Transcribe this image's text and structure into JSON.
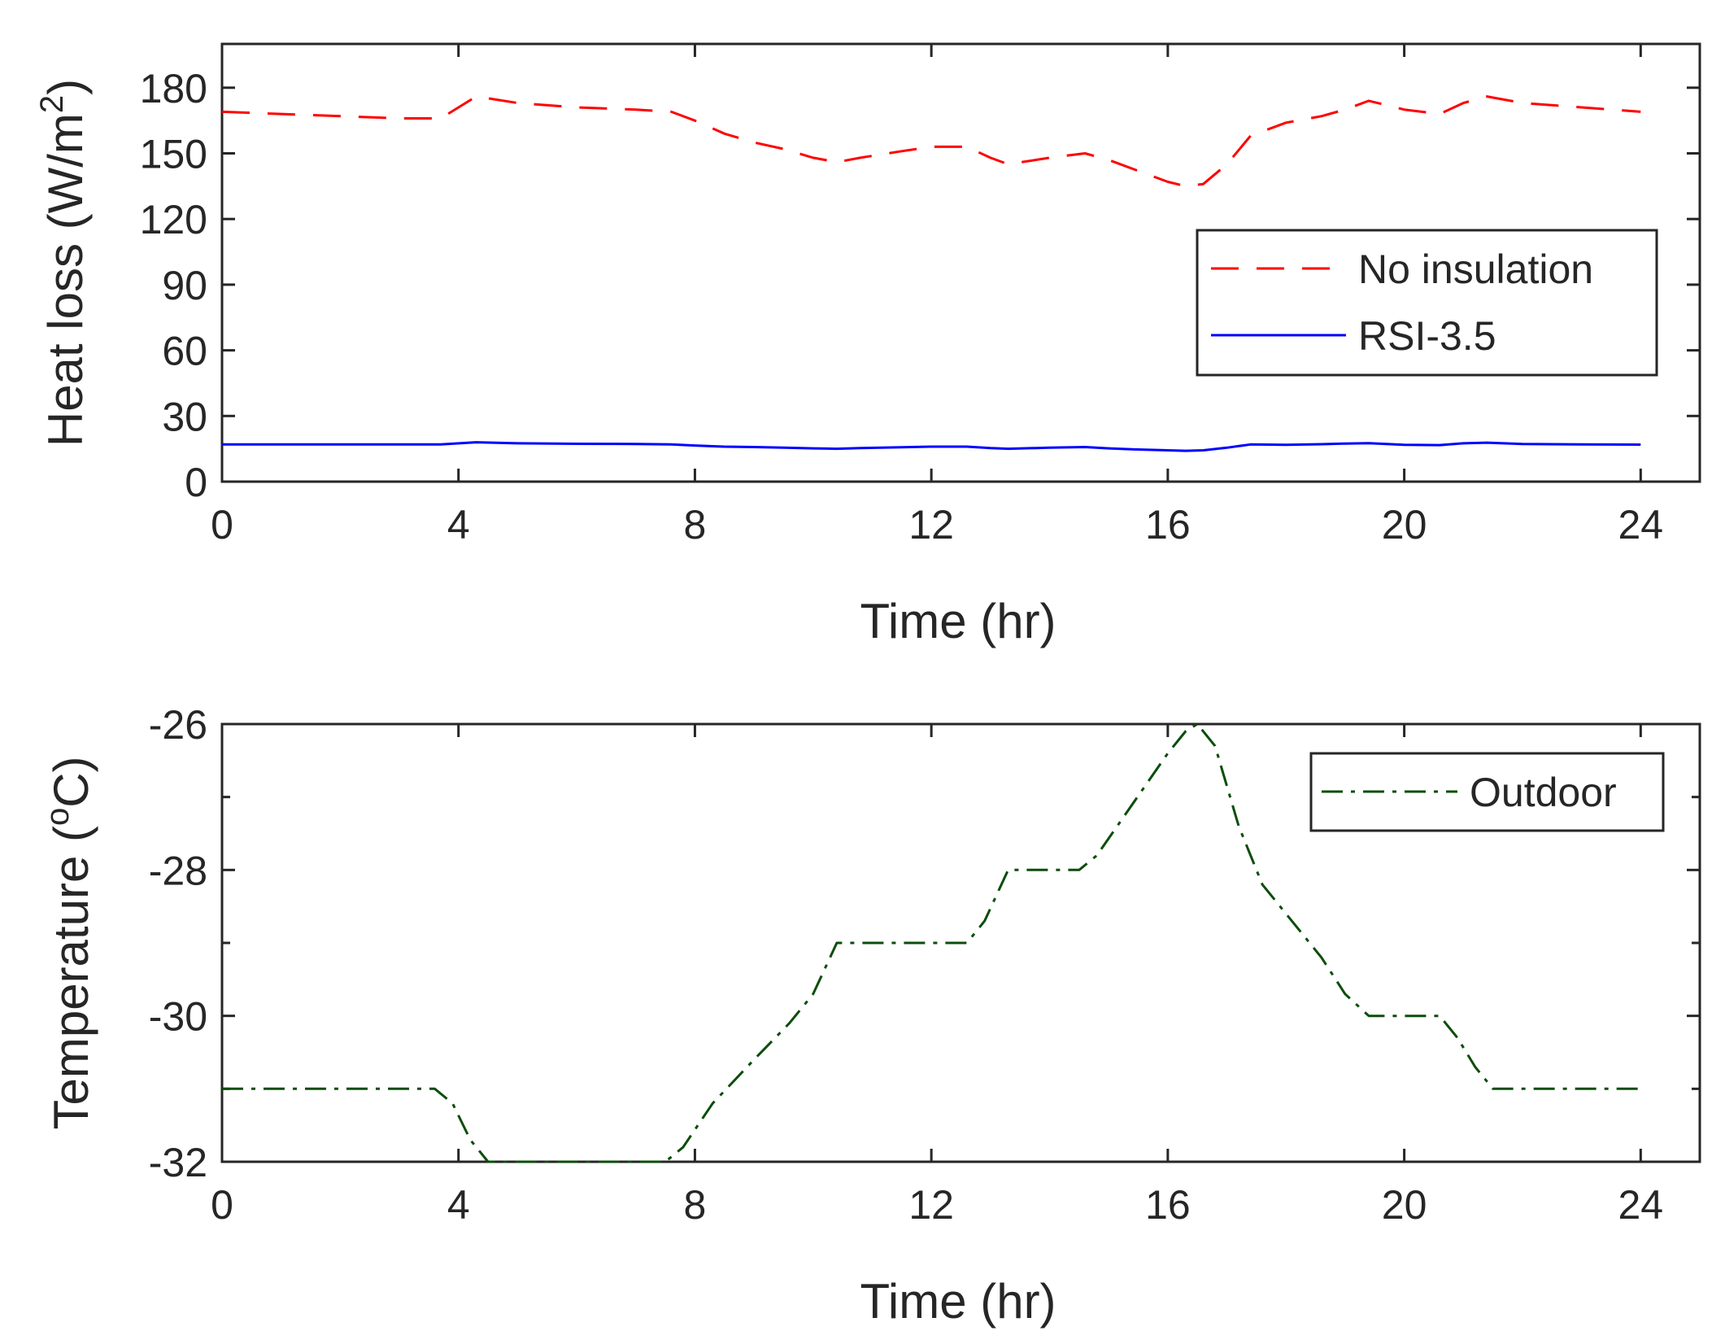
{
  "chart_data": [
    {
      "type": "line",
      "xlabel": "Time (hr)",
      "ylabel": "Heat loss (W/m",
      "ylabel_sup": "2",
      "ylabel_tail": ")",
      "xlim": [
        0,
        25
      ],
      "ylim": [
        0,
        200
      ],
      "xticks": [
        0,
        4,
        8,
        12,
        16,
        20,
        24
      ],
      "xtick_labels": [
        "0",
        "4",
        "8",
        "12",
        "16",
        "20",
        "24"
      ],
      "yticks": [
        0,
        30,
        60,
        90,
        120,
        150,
        180
      ],
      "ytick_labels": [
        "0",
        "30",
        "60",
        "90",
        "120",
        "150",
        "180"
      ],
      "legend_position": "right",
      "series": [
        {
          "name": "No insulation",
          "color": "#ff0000",
          "style": "dashed",
          "x": [
            0,
            1,
            2,
            3,
            3.7,
            4.3,
            5,
            6,
            7,
            7.6,
            8,
            8.5,
            9,
            9.5,
            10,
            10.4,
            10.8,
            11.5,
            12,
            12.6,
            13,
            13.3,
            14,
            14.6,
            15,
            15.5,
            16,
            16.3,
            16.6,
            17,
            17.4,
            18,
            18.6,
            19,
            19.4,
            20,
            20.6,
            21,
            21.4,
            22,
            23,
            24
          ],
          "values": [
            169,
            168,
            167,
            166,
            166,
            176,
            173,
            171,
            170,
            169,
            165,
            159,
            155,
            152,
            148,
            146,
            148,
            151,
            153,
            153,
            148,
            145,
            148,
            150,
            147,
            142,
            137,
            135,
            136,
            145,
            158,
            164,
            167,
            170,
            174,
            170,
            168,
            173,
            176,
            173,
            171,
            169
          ]
        },
        {
          "name": "RSI-3.5",
          "color": "#0000ff",
          "style": "solid",
          "x": [
            0,
            1,
            2,
            3,
            3.7,
            4.3,
            5,
            6,
            7,
            7.6,
            8,
            8.5,
            9,
            9.5,
            10,
            10.4,
            10.8,
            11.5,
            12,
            12.6,
            13,
            13.3,
            14,
            14.6,
            15,
            15.5,
            16,
            16.3,
            16.6,
            17,
            17.4,
            18,
            18.6,
            19,
            19.4,
            20,
            20.6,
            21,
            21.4,
            22,
            23,
            24
          ],
          "values": [
            17,
            17,
            17,
            17,
            17,
            18,
            17.5,
            17.3,
            17.2,
            17,
            16.5,
            16,
            15.8,
            15.5,
            15.2,
            15,
            15.3,
            15.7,
            16,
            16,
            15.3,
            15,
            15.5,
            15.8,
            15.2,
            14.7,
            14.3,
            14.1,
            14.3,
            15.5,
            17,
            16.8,
            17.1,
            17.4,
            17.6,
            16.8,
            16.7,
            17.5,
            17.8,
            17.2,
            17,
            16.9
          ]
        }
      ]
    },
    {
      "type": "line",
      "xlabel": "Time (hr)",
      "ylabel": "Temperature (",
      "ylabel_sup": "o",
      "ylabel_tail": "C)",
      "xlim": [
        0,
        25
      ],
      "ylim": [
        -32,
        -26
      ],
      "xticks": [
        0,
        4,
        8,
        12,
        16,
        20,
        24
      ],
      "xtick_labels": [
        "0",
        "4",
        "8",
        "12",
        "16",
        "20",
        "24"
      ],
      "yticks": [
        -32,
        -30,
        -28,
        -26
      ],
      "ytick_labels": [
        "-32",
        "-30",
        "-28",
        "-26"
      ],
      "minor_yticks": [
        -31,
        -29,
        -27
      ],
      "legend_position": "top-right",
      "series": [
        {
          "name": "Outdoor",
          "color": "#0b4d0b",
          "style": "dashdot",
          "x": [
            0,
            3.6,
            3.9,
            4.2,
            4.5,
            7.5,
            7.8,
            8.3,
            9,
            9.6,
            10,
            10.4,
            12.6,
            12.9,
            13.3,
            14.5,
            14.8,
            16,
            16.3,
            16.5,
            16.8,
            17.2,
            17.6,
            18,
            18.6,
            19,
            19.4,
            20.6,
            20.9,
            21.2,
            21.5,
            24
          ],
          "values": [
            -31,
            -31,
            -31.2,
            -31.7,
            -32,
            -32,
            -31.8,
            -31.2,
            -30.6,
            -30.1,
            -29.7,
            -29,
            -29,
            -28.7,
            -28,
            -28,
            -27.8,
            -26.4,
            -26.1,
            -26,
            -26.3,
            -27.4,
            -28.2,
            -28.6,
            -29.2,
            -29.7,
            -30,
            -30,
            -30.3,
            -30.7,
            -31,
            -31
          ]
        }
      ]
    }
  ]
}
